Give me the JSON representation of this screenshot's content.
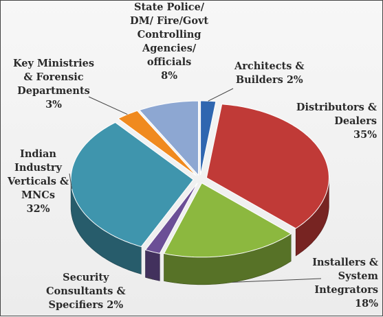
{
  "chart_data": {
    "type": "pie",
    "style": "3d-exploded",
    "slices": [
      {
        "label": "Architects & Builders",
        "value": 2,
        "color": "#2f66b0",
        "lines": [
          "Architects &",
          "Builders 2%"
        ]
      },
      {
        "label": "Distributors & Dealers",
        "value": 35,
        "color": "#c03a37",
        "lines": [
          "Distributors &",
          "Dealers",
          "35%"
        ]
      },
      {
        "label": "Installers & System Integrators",
        "value": 18,
        "color": "#8cb83f",
        "lines": [
          "Installers &",
          "System",
          "Integrators",
          "18%"
        ]
      },
      {
        "label": "Security Consultants & Specifiers",
        "value": 2,
        "color": "#6b4f96",
        "lines": [
          "Security",
          "Consultants &",
          "Specifiers 2%"
        ]
      },
      {
        "label": "Indian Industry Verticals & MNCs",
        "value": 32,
        "color": "#3f95ad",
        "lines": [
          "Indian",
          "Industry",
          "Verticals &",
          "MNCs",
          "32%"
        ]
      },
      {
        "label": "Key Ministries & Forensic Departments",
        "value": 3,
        "color": "#f08a1f",
        "lines": [
          "Key Ministries",
          "& Forensic",
          "Departments",
          "3%"
        ]
      },
      {
        "label": "State Police/ DM/ Fire/Govt Controlling Agencies/ officials",
        "value": 8,
        "color": "#8da7d2",
        "lines": [
          "State Police/",
          "DM/ Fire/Govt",
          "Controlling",
          "Agencies/",
          "officials",
          "8%"
        ]
      }
    ]
  }
}
